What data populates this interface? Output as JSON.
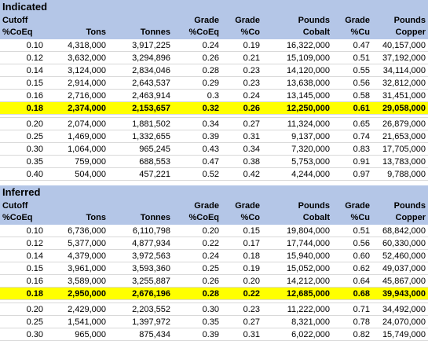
{
  "headers": [
    "Cutoff %CoEq",
    "Tons",
    "Tonnes",
    "Grade %CoEq",
    "Grade %Co",
    "Pounds Cobalt",
    "Grade %Cu",
    "Pounds Copper"
  ],
  "indicated": {
    "title": "Indicated",
    "header": [
      [
        "Cutoff",
        "%CoEq"
      ],
      [
        "",
        "Tons"
      ],
      [
        "",
        "Tonnes"
      ],
      [
        "Grade",
        "%CoEq"
      ],
      [
        "Grade",
        "%Co"
      ],
      [
        "Pounds",
        "Cobalt"
      ],
      [
        "Grade",
        "%Cu"
      ],
      [
        "Pounds",
        "Copper"
      ]
    ],
    "rows": [
      [
        "0.10",
        "4,318,000",
        "3,917,225",
        "0.24",
        "0.19",
        "16,322,000",
        "0.47",
        "40,157,000"
      ],
      [
        "0.12",
        "3,632,000",
        "3,294,896",
        "0.26",
        "0.21",
        "15,109,000",
        "0.51",
        "37,192,000"
      ],
      [
        "0.14",
        "3,124,000",
        "2,834,046",
        "0.28",
        "0.23",
        "14,120,000",
        "0.55",
        "34,114,000"
      ],
      [
        "0.15",
        "2,914,000",
        "2,643,537",
        "0.29",
        "0.23",
        "13,638,000",
        "0.56",
        "32,812,000"
      ],
      [
        "0.16",
        "2,716,000",
        "2,463,914",
        "0.3",
        "0.24",
        "13,145,000",
        "0.58",
        "31,451,000"
      ],
      [
        "0.18",
        "2,374,000",
        "2,153,657",
        "0.32",
        "0.26",
        "12,250,000",
        "0.61",
        "29,058,000"
      ],
      [
        "0.20",
        "2,074,000",
        "1,881,502",
        "0.34",
        "0.27",
        "11,324,000",
        "0.65",
        "26,879,000"
      ],
      [
        "0.25",
        "1,469,000",
        "1,332,655",
        "0.39",
        "0.31",
        "9,137,000",
        "0.74",
        "21,653,000"
      ],
      [
        "0.30",
        "1,064,000",
        "965,245",
        "0.43",
        "0.34",
        "7,320,000",
        "0.83",
        "17,705,000"
      ],
      [
        "0.35",
        "759,000",
        "688,553",
        "0.47",
        "0.38",
        "5,753,000",
        "0.91",
        "13,783,000"
      ],
      [
        "0.40",
        "504,000",
        "457,221",
        "0.52",
        "0.42",
        "4,244,000",
        "0.97",
        "9,788,000"
      ]
    ],
    "highlight_index": 5
  },
  "inferred": {
    "title": "Inferred",
    "header": [
      [
        "Cutoff",
        "%CoEq"
      ],
      [
        "",
        "Tons"
      ],
      [
        "",
        "Tonnes"
      ],
      [
        "Grade",
        "%CoEq"
      ],
      [
        "Grade",
        "%Co"
      ],
      [
        "Pounds",
        "Cobalt"
      ],
      [
        "Grade",
        "%Cu"
      ],
      [
        "Pounds",
        "Copper"
      ]
    ],
    "rows": [
      [
        "0.10",
        "6,736,000",
        "6,110,798",
        "0.20",
        "0.15",
        "19,804,000",
        "0.51",
        "68,842,000"
      ],
      [
        "0.12",
        "5,377,000",
        "4,877,934",
        "0.22",
        "0.17",
        "17,744,000",
        "0.56",
        "60,330,000"
      ],
      [
        "0.14",
        "4,379,000",
        "3,972,563",
        "0.24",
        "0.18",
        "15,940,000",
        "0.60",
        "52,460,000"
      ],
      [
        "0.15",
        "3,961,000",
        "3,593,360",
        "0.25",
        "0.19",
        "15,052,000",
        "0.62",
        "49,037,000"
      ],
      [
        "0.16",
        "3,589,000",
        "3,255,887",
        "0.26",
        "0.20",
        "14,212,000",
        "0.64",
        "45,867,000"
      ],
      [
        "0.18",
        "2,950,000",
        "2,676,196",
        "0.28",
        "0.22",
        "12,685,000",
        "0.68",
        "39,943,000"
      ],
      [
        "0.20",
        "2,429,000",
        "2,203,552",
        "0.30",
        "0.23",
        "11,222,000",
        "0.71",
        "34,492,000"
      ],
      [
        "0.25",
        "1,541,000",
        "1,397,972",
        "0.35",
        "0.27",
        "8,321,000",
        "0.78",
        "24,070,000"
      ],
      [
        "0.30",
        "965,000",
        "875,434",
        "0.39",
        "0.31",
        "6,022,000",
        "0.82",
        "15,749,000"
      ]
    ],
    "highlight_index": 5
  },
  "colors": {
    "header_bg": "#b4c6e7",
    "highlight": "#ffff00",
    "gridline": "#d9d9d9"
  }
}
